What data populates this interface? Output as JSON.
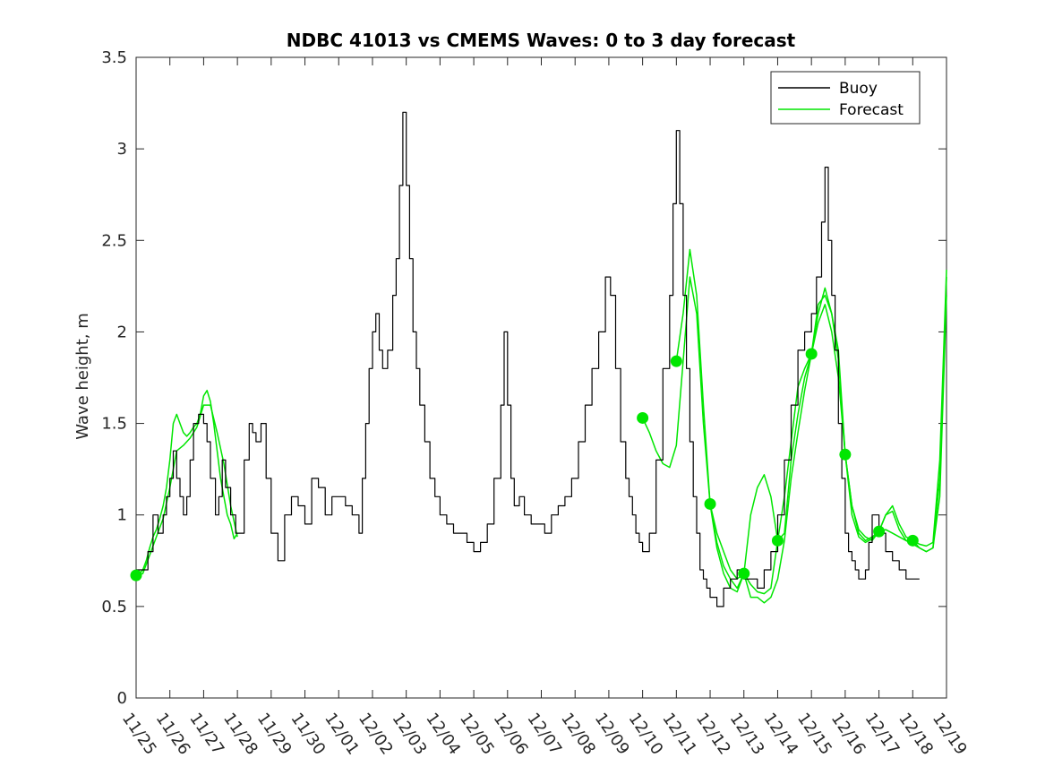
{
  "chart_data": {
    "type": "line",
    "title": "NDBC 41013 vs CMEMS Waves: 0 to 3 day forecast",
    "xlabel": "",
    "ylabel": "Wave height, m",
    "ylim": [
      0,
      3.5
    ],
    "yticks": [
      "0",
      "0.5",
      "1",
      "1.5",
      "2",
      "2.5",
      "3",
      "3.5"
    ],
    "xlim": [
      0,
      24
    ],
    "xtick_labels": [
      "11/25",
      "11/26",
      "11/27",
      "11/28",
      "11/29",
      "11/30",
      "12/01",
      "12/02",
      "12/03",
      "12/04",
      "12/05",
      "12/06",
      "12/07",
      "12/08",
      "12/09",
      "12/10",
      "12/11",
      "12/12",
      "12/13",
      "12/14",
      "12/15",
      "12/16",
      "12/17",
      "12/18",
      "12/19"
    ],
    "legend": {
      "placement": "top-right",
      "entries": [
        {
          "label": "Buoy",
          "color": "#000000"
        },
        {
          "label": "Forecast",
          "color": "#00e600"
        }
      ]
    },
    "buoy": {
      "color": "#000000",
      "x": [
        0,
        0.1,
        0.2,
        0.35,
        0.5,
        0.65,
        0.8,
        0.9,
        1.0,
        1.1,
        1.2,
        1.3,
        1.4,
        1.5,
        1.6,
        1.7,
        1.85,
        2.0,
        2.1,
        2.2,
        2.35,
        2.45,
        2.55,
        2.65,
        2.8,
        2.95,
        3.05,
        3.2,
        3.35,
        3.45,
        3.55,
        3.7,
        3.85,
        4.0,
        4.2,
        4.4,
        4.6,
        4.8,
        5.0,
        5.2,
        5.4,
        5.6,
        5.8,
        6.0,
        6.2,
        6.4,
        6.6,
        6.7,
        6.8,
        6.9,
        7.0,
        7.1,
        7.2,
        7.3,
        7.45,
        7.6,
        7.7,
        7.8,
        7.9,
        8.0,
        8.1,
        8.2,
        8.3,
        8.4,
        8.55,
        8.7,
        8.85,
        9.0,
        9.2,
        9.4,
        9.6,
        9.8,
        10.0,
        10.2,
        10.4,
        10.6,
        10.8,
        10.9,
        11.0,
        11.1,
        11.2,
        11.35,
        11.5,
        11.7,
        11.9,
        12.1,
        12.3,
        12.5,
        12.7,
        12.9,
        13.1,
        13.3,
        13.5,
        13.7,
        13.9,
        14.05,
        14.2,
        14.35,
        14.5,
        14.6,
        14.7,
        14.8,
        14.9,
        15.0,
        15.2,
        15.4,
        15.6,
        15.8,
        15.9,
        16.0,
        16.1,
        16.2,
        16.3,
        16.4,
        16.5,
        16.6,
        16.7,
        16.8,
        16.9,
        17.0,
        17.2,
        17.4,
        17.6,
        17.8,
        18.0,
        18.2,
        18.4,
        18.6,
        18.8,
        19.0,
        19.2,
        19.4,
        19.6,
        19.8,
        20.0,
        20.15,
        20.3,
        20.4,
        20.5,
        20.6,
        20.7,
        20.8,
        20.9,
        21.0,
        21.1,
        21.2,
        21.3,
        21.4,
        21.5,
        21.6,
        21.7,
        21.8,
        22.0,
        22.2,
        22.4,
        22.6,
        22.8,
        23.0,
        23.2
      ],
      "y": [
        0.7,
        0.7,
        0.7,
        0.8,
        1.0,
        0.9,
        1.0,
        1.1,
        1.2,
        1.35,
        1.2,
        1.1,
        1.0,
        1.1,
        1.3,
        1.5,
        1.55,
        1.5,
        1.4,
        1.2,
        1.0,
        1.1,
        1.3,
        1.15,
        1.0,
        0.9,
        0.9,
        1.3,
        1.5,
        1.45,
        1.4,
        1.5,
        1.2,
        0.9,
        0.75,
        1.0,
        1.1,
        1.05,
        0.95,
        1.2,
        1.15,
        1.0,
        1.1,
        1.1,
        1.05,
        1.0,
        0.9,
        1.2,
        1.5,
        1.8,
        2.0,
        2.1,
        1.9,
        1.8,
        1.9,
        2.2,
        2.4,
        2.8,
        3.2,
        2.8,
        2.4,
        2.0,
        1.8,
        1.6,
        1.4,
        1.2,
        1.1,
        1.0,
        0.95,
        0.9,
        0.9,
        0.85,
        0.8,
        0.85,
        0.95,
        1.2,
        1.6,
        2.0,
        1.6,
        1.2,
        1.05,
        1.1,
        1.0,
        0.95,
        0.95,
        0.9,
        1.0,
        1.05,
        1.1,
        1.2,
        1.4,
        1.6,
        1.8,
        2.0,
        2.3,
        2.2,
        1.8,
        1.4,
        1.2,
        1.1,
        1.0,
        0.9,
        0.85,
        0.8,
        0.9,
        1.3,
        1.8,
        2.2,
        2.7,
        3.1,
        2.7,
        2.2,
        1.8,
        1.4,
        1.1,
        0.9,
        0.7,
        0.65,
        0.6,
        0.55,
        0.5,
        0.6,
        0.65,
        0.7,
        0.65,
        0.65,
        0.6,
        0.7,
        0.8,
        1.0,
        1.3,
        1.6,
        1.9,
        2.0,
        2.1,
        2.3,
        2.6,
        2.9,
        2.5,
        2.2,
        1.9,
        1.5,
        1.2,
        0.9,
        0.8,
        0.75,
        0.7,
        0.65,
        0.65,
        0.7,
        0.85,
        1.0,
        0.9,
        0.8,
        0.75,
        0.7,
        0.65,
        0.65,
        0.65
      ]
    },
    "forecast_runs": [
      {
        "color": "#00e600",
        "x": [
          0.0,
          0.1,
          0.2,
          0.3,
          0.4,
          0.5,
          0.6,
          0.7,
          0.8,
          0.9,
          1.0,
          1.1,
          1.2,
          1.3,
          1.4,
          1.5,
          1.6,
          1.7,
          1.8,
          1.9,
          2.0,
          2.1,
          2.2,
          2.3,
          2.4,
          2.5,
          2.6,
          2.7,
          2.8,
          2.9,
          3.0
        ],
        "y": [
          0.67,
          0.68,
          0.7,
          0.75,
          0.82,
          0.88,
          0.92,
          0.98,
          1.05,
          1.15,
          1.3,
          1.5,
          1.55,
          1.5,
          1.45,
          1.43,
          1.45,
          1.48,
          1.5,
          1.55,
          1.65,
          1.68,
          1.62,
          1.5,
          1.35,
          1.2,
          1.1,
          1.0,
          0.95,
          0.87,
          0.9
        ]
      },
      {
        "color": "#00e600",
        "x": [
          0.0,
          0.2,
          0.4,
          0.6,
          0.8,
          1.0,
          1.2,
          1.4,
          1.6,
          1.8,
          2.0,
          2.2,
          2.4,
          2.6,
          2.8,
          3.0
        ],
        "y": [
          0.67,
          0.68,
          0.78,
          0.88,
          0.98,
          1.15,
          1.35,
          1.38,
          1.42,
          1.48,
          1.6,
          1.6,
          1.45,
          1.28,
          1.05,
          0.88
        ]
      },
      {
        "color": "#00e600",
        "x": [
          15.0,
          15.2,
          15.4,
          15.6,
          15.8,
          16.0,
          16.2,
          16.4,
          16.6,
          16.8,
          17.0,
          17.2,
          17.4,
          17.6,
          17.8,
          18.0,
          18.2,
          18.4,
          18.6,
          18.8,
          19.0,
          19.2,
          19.4,
          19.6,
          19.8,
          20.0,
          20.2,
          20.4,
          20.6,
          20.8,
          21.0,
          21.2,
          21.4,
          21.6,
          21.8,
          22.0,
          22.2,
          22.4,
          22.6,
          22.8,
          23.0,
          23.2,
          23.4,
          23.6,
          23.8,
          24.0
        ],
        "y": [
          1.53,
          1.45,
          1.35,
          1.28,
          1.26,
          1.38,
          1.84,
          2.3,
          2.1,
          1.5,
          1.06,
          0.85,
          0.72,
          0.65,
          0.6,
          0.68,
          0.55,
          0.55,
          0.52,
          0.55,
          0.65,
          0.86,
          1.2,
          1.45,
          1.68,
          1.88,
          2.05,
          2.15,
          2.0,
          1.75,
          1.33,
          1.05,
          0.92,
          0.88,
          0.86,
          0.91,
          0.92,
          0.9,
          0.88,
          0.86,
          0.84,
          0.82,
          0.8,
          0.82,
          1.2,
          2.3
        ]
      },
      {
        "color": "#00e600",
        "x": [
          16.0,
          16.2,
          16.4,
          16.6,
          16.8,
          17.0,
          17.2,
          17.4,
          17.6,
          17.8,
          18.0,
          18.2,
          18.4,
          18.6,
          18.8,
          19.0,
          19.2,
          19.4,
          19.6,
          19.8,
          20.0,
          20.2,
          20.4,
          20.6,
          20.8,
          21.0,
          21.2,
          21.4,
          21.6,
          21.8,
          22.0,
          22.2,
          22.4,
          22.6,
          22.8,
          23.0,
          23.2,
          23.4,
          23.6,
          23.8,
          24.0
        ],
        "y": [
          1.84,
          2.1,
          2.45,
          2.2,
          1.6,
          1.06,
          0.9,
          0.8,
          0.7,
          0.65,
          0.68,
          1.0,
          1.15,
          1.22,
          1.1,
          0.86,
          0.9,
          1.3,
          1.55,
          1.75,
          1.88,
          2.1,
          2.24,
          2.1,
          1.85,
          1.33,
          1.0,
          0.88,
          0.85,
          0.87,
          0.91,
          1.0,
          1.05,
          0.95,
          0.88,
          0.86,
          0.84,
          0.83,
          0.85,
          1.3,
          2.34
        ]
      },
      {
        "color": "#00e600",
        "x": [
          17.0,
          17.2,
          17.4,
          17.6,
          17.8,
          18.0,
          18.2,
          18.4,
          18.6,
          18.8,
          19.0,
          19.2,
          19.4,
          19.6,
          19.8,
          20.0,
          20.2,
          20.4,
          20.6,
          20.8,
          21.0,
          21.2,
          21.4,
          21.6,
          21.8,
          22.0,
          22.2,
          22.4,
          22.6,
          22.8,
          23.0,
          23.2,
          23.4,
          23.6,
          23.8,
          24.0
        ],
        "y": [
          1.06,
          0.82,
          0.68,
          0.6,
          0.58,
          0.68,
          0.62,
          0.58,
          0.57,
          0.6,
          0.86,
          1.1,
          1.4,
          1.7,
          1.8,
          1.88,
          2.15,
          2.2,
          2.1,
          1.9,
          1.33,
          1.05,
          0.9,
          0.86,
          0.88,
          0.91,
          1.0,
          1.02,
          0.92,
          0.86,
          0.86,
          0.82,
          0.8,
          0.82,
          1.1,
          2.2
        ]
      }
    ],
    "forecast_markers": {
      "color": "#00e600",
      "x": [
        0,
        15,
        16,
        17,
        18,
        19,
        20,
        21,
        22,
        23
      ],
      "y": [
        0.67,
        1.53,
        1.84,
        1.06,
        0.68,
        0.86,
        1.88,
        1.33,
        0.91,
        0.86
      ]
    }
  }
}
